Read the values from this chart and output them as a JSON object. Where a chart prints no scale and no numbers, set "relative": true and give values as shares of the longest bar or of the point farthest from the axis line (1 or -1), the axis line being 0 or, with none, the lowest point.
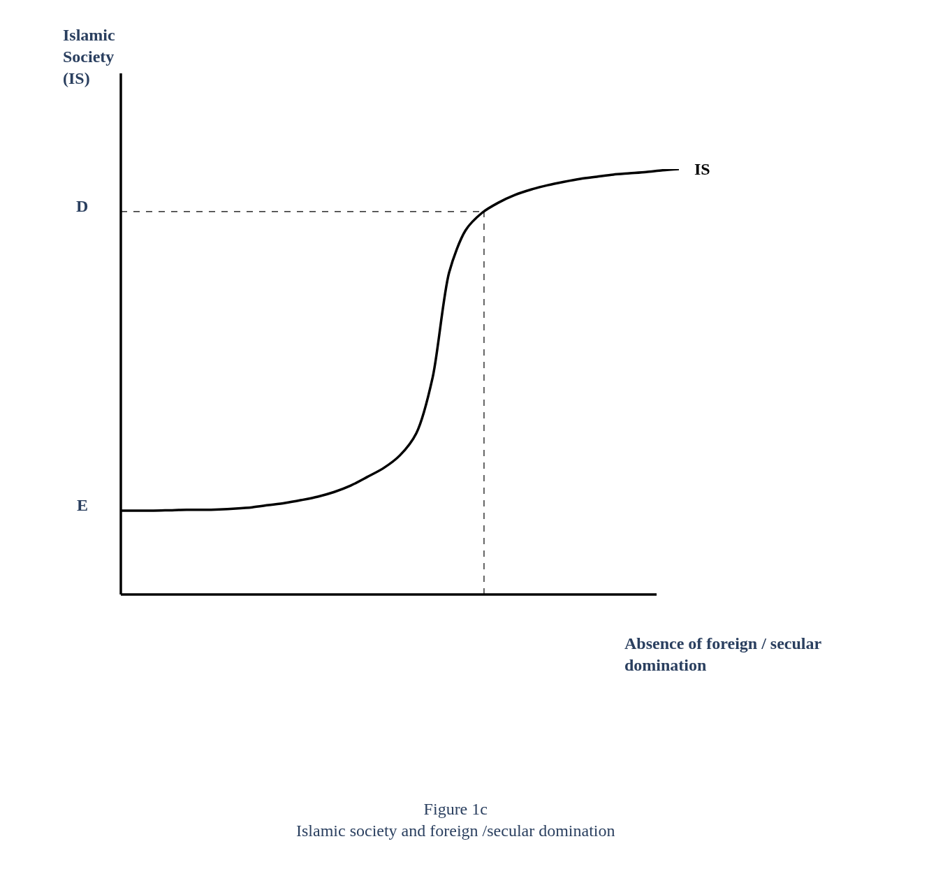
{
  "chart_data": {
    "type": "line",
    "relative": true,
    "ylabel": "Islamic\nSociety\n(IS)",
    "xlabel": "Absence of foreign / secular\ndomination",
    "categories": [
      null,
      null,
      null,
      null,
      null,
      null,
      null,
      null,
      null,
      null,
      null,
      null,
      null,
      null,
      null,
      null,
      null,
      null,
      null,
      null,
      null,
      null,
      null,
      null,
      null,
      null,
      null,
      null,
      null,
      null,
      null,
      null,
      null,
      null,
      null
    ],
    "series": [
      {
        "name": "IS",
        "color": "#000000",
        "values": [
          0.197,
          0.197,
          0.197,
          0.198,
          0.199,
          0.199,
          0.2,
          0.202,
          0.205,
          0.21,
          0.215,
          0.222,
          0.23,
          0.241,
          0.256,
          0.276,
          0.297,
          0.327,
          0.379,
          0.511,
          0.757,
          0.856,
          0.897,
          0.921,
          0.939,
          0.952,
          0.962,
          0.97,
          0.977,
          0.982,
          0.987,
          0.99,
          0.993,
          0.997,
          1.0
        ]
      }
    ],
    "ref_lines": [
      {
        "axis": "y",
        "value": 0.9,
        "label": "D",
        "line_style": "dashed"
      }
    ],
    "annotations": [
      "E",
      "Figure 1c\nIslamic society and foreign /secular domination"
    ],
    "legend": false,
    "marker": "none",
    "line_style": "solid"
  }
}
